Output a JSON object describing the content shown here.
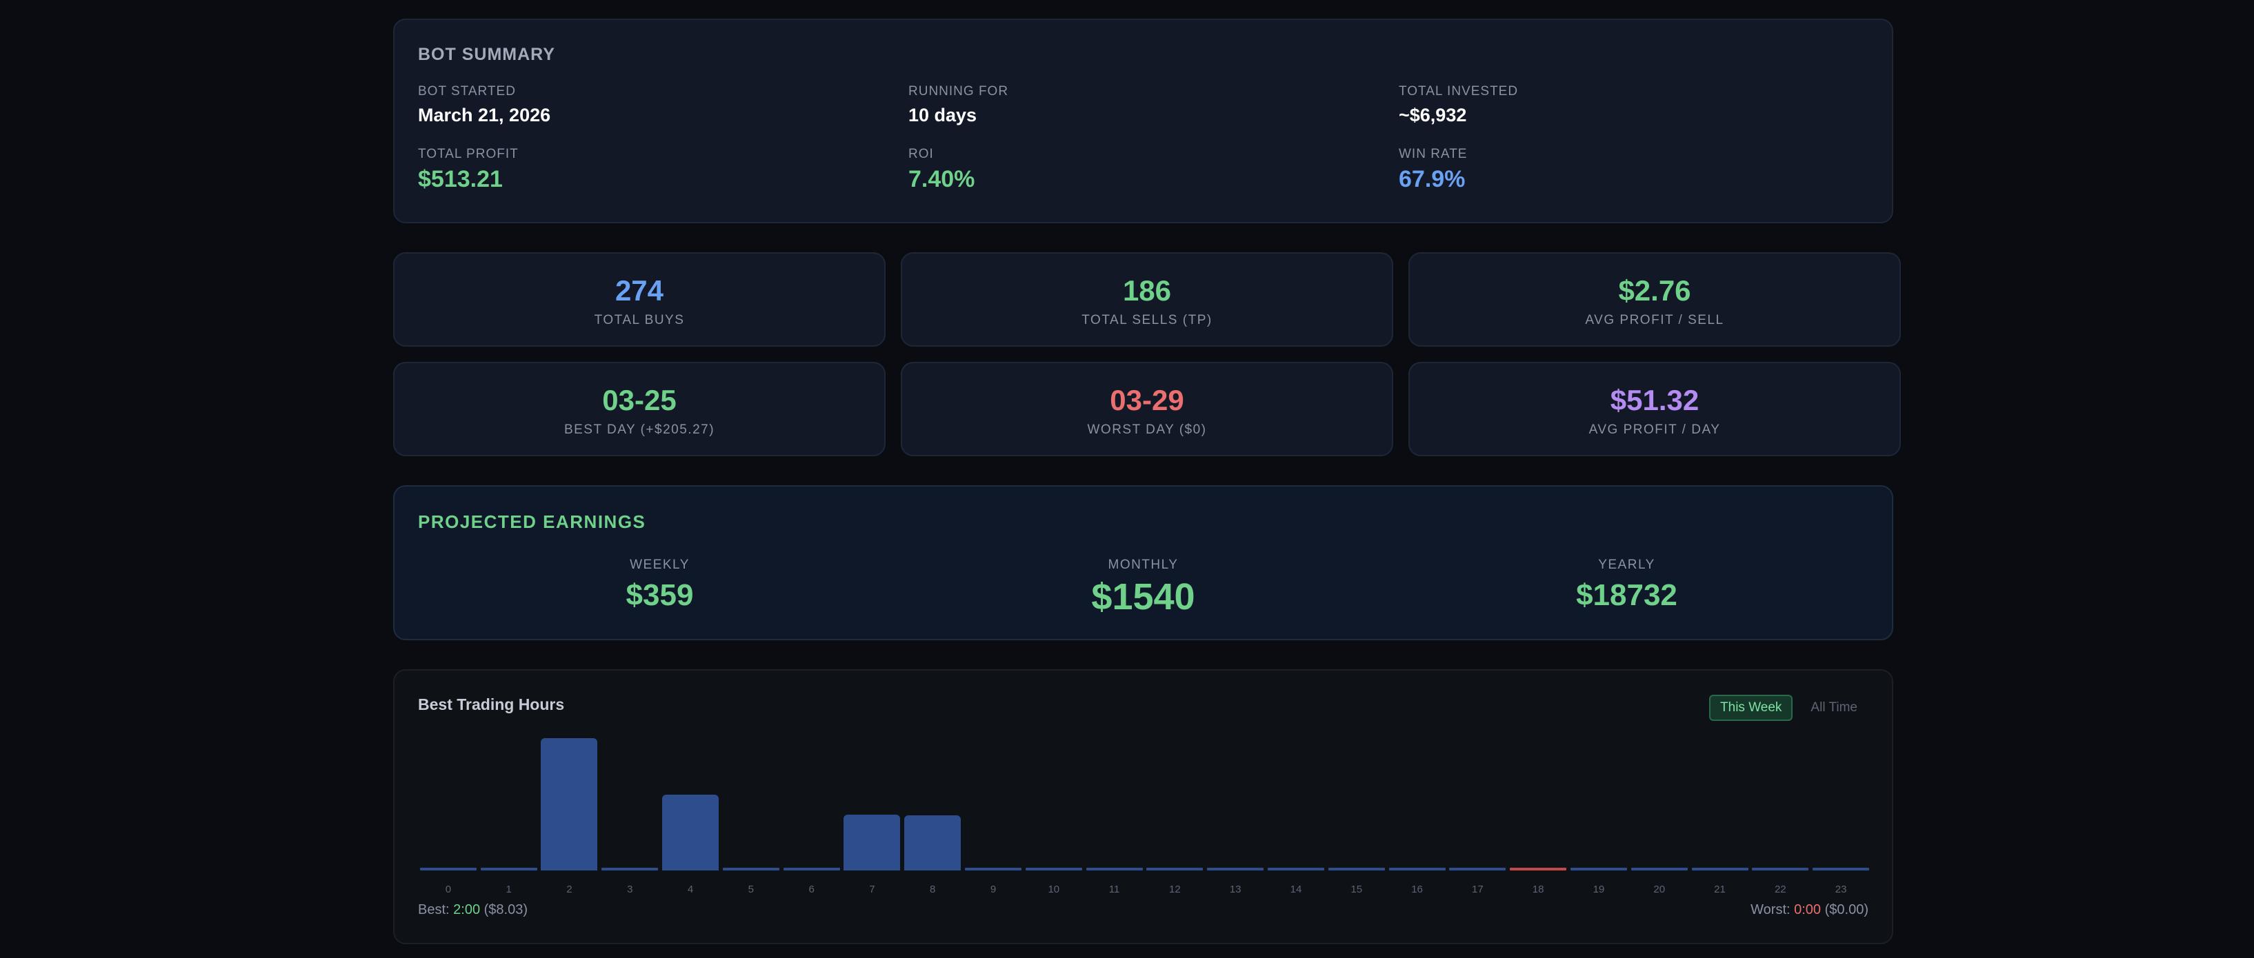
{
  "summary": {
    "title": "BOT SUMMARY",
    "bot_started_label": "BOT STARTED",
    "bot_started_value": "March 21, 2026",
    "running_for_label": "RUNNING FOR",
    "running_for_value": "10 days",
    "total_invested_label": "TOTAL INVESTED",
    "total_invested_value": "~$6,932",
    "total_profit_label": "TOTAL PROFIT",
    "total_profit_value": "$513.21",
    "roi_label": "ROI",
    "roi_value": "7.40%",
    "win_rate_label": "WIN RATE",
    "win_rate_value": "67.9%"
  },
  "stats": [
    {
      "value": "274",
      "label": "TOTAL BUYS"
    },
    {
      "value": "186",
      "label": "TOTAL SELLS (TP)"
    },
    {
      "value": "$2.76",
      "label": "AVG PROFIT / SELL"
    },
    {
      "value": "03-25",
      "label": "BEST DAY (+$205.27)"
    },
    {
      "value": "03-29",
      "label": "WORST DAY ($0)"
    },
    {
      "value": "$51.32",
      "label": "AVG PROFIT / DAY"
    }
  ],
  "projected": {
    "title": "PROJECTED EARNINGS",
    "weekly_label": "WEEKLY",
    "weekly_value": "$359",
    "monthly_label": "MONTHLY",
    "monthly_value": "$1540",
    "yearly_label": "YEARLY",
    "yearly_value": "$18732"
  },
  "hours": {
    "title": "Best Trading Hours",
    "toggle_this_week": "This Week",
    "toggle_all_time": "All Time",
    "best_label": "Best:",
    "best_hour": "2:00",
    "best_amount": "($8.03)",
    "worst_label": "Worst:",
    "worst_hour": "0:00",
    "worst_amount": "($0.00)"
  },
  "colors": {
    "green": "#6fd18a",
    "blue": "#6aa1f2",
    "red": "#ec6f6f",
    "purple": "#b58cf2",
    "bar": "#2d4d8c",
    "worst_bar": "#c54848"
  },
  "chart_data": {
    "type": "bar",
    "categories": [
      "0",
      "1",
      "2",
      "3",
      "4",
      "5",
      "6",
      "7",
      "8",
      "9",
      "10",
      "11",
      "12",
      "13",
      "14",
      "15",
      "16",
      "17",
      "18",
      "19",
      "20",
      "21",
      "22",
      "23"
    ],
    "values": [
      0,
      0,
      8.03,
      0,
      4.6,
      0,
      0,
      3.4,
      3.35,
      0,
      0,
      0,
      0,
      0,
      0,
      0,
      0,
      0,
      0,
      0,
      0,
      0,
      0,
      0
    ],
    "highlight_worst_index": 18,
    "title": "Best Trading Hours",
    "xlabel": "",
    "ylabel": ""
  }
}
